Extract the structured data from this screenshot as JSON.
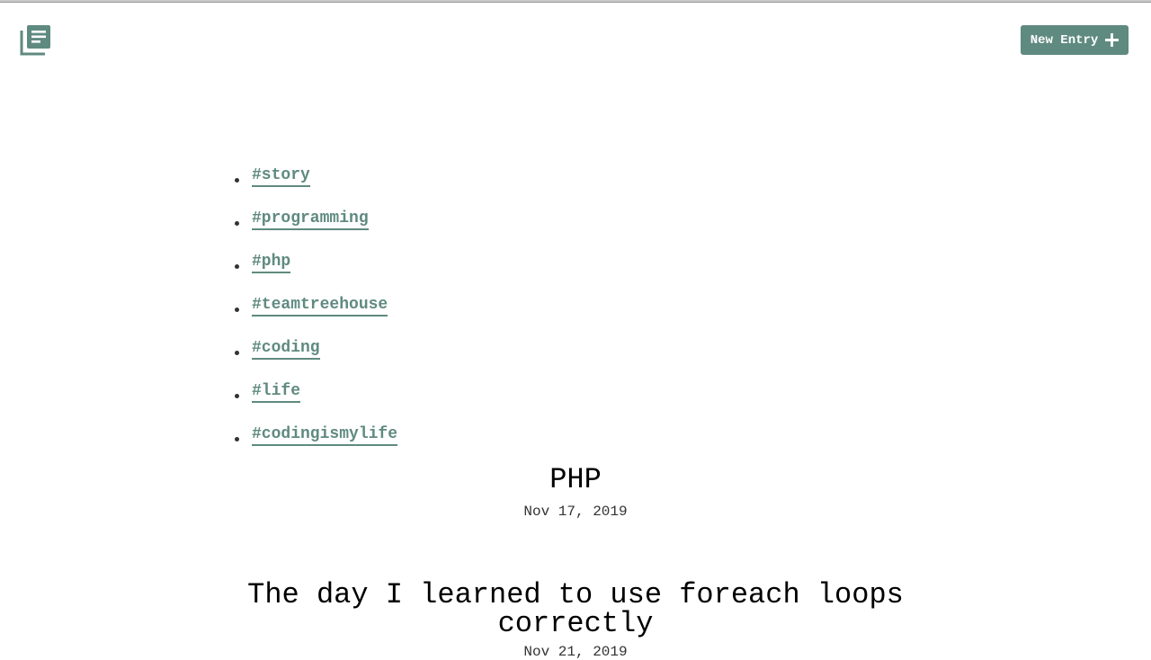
{
  "header": {
    "logo_icon": "journal-stack-icon",
    "new_entry_label": "New Entry",
    "new_entry_icon": "plus-icon",
    "accent_color": "#5f8a7f"
  },
  "tags": [
    "#story",
    "#programming",
    "#php",
    "#teamtreehouse",
    "#coding",
    "#life",
    "#codingismylife"
  ],
  "entries": [
    {
      "title": "PHP",
      "date": "Nov 17, 2019"
    },
    {
      "title": "The day I learned to use foreach loops correctly",
      "date": "Nov 21, 2019"
    }
  ]
}
